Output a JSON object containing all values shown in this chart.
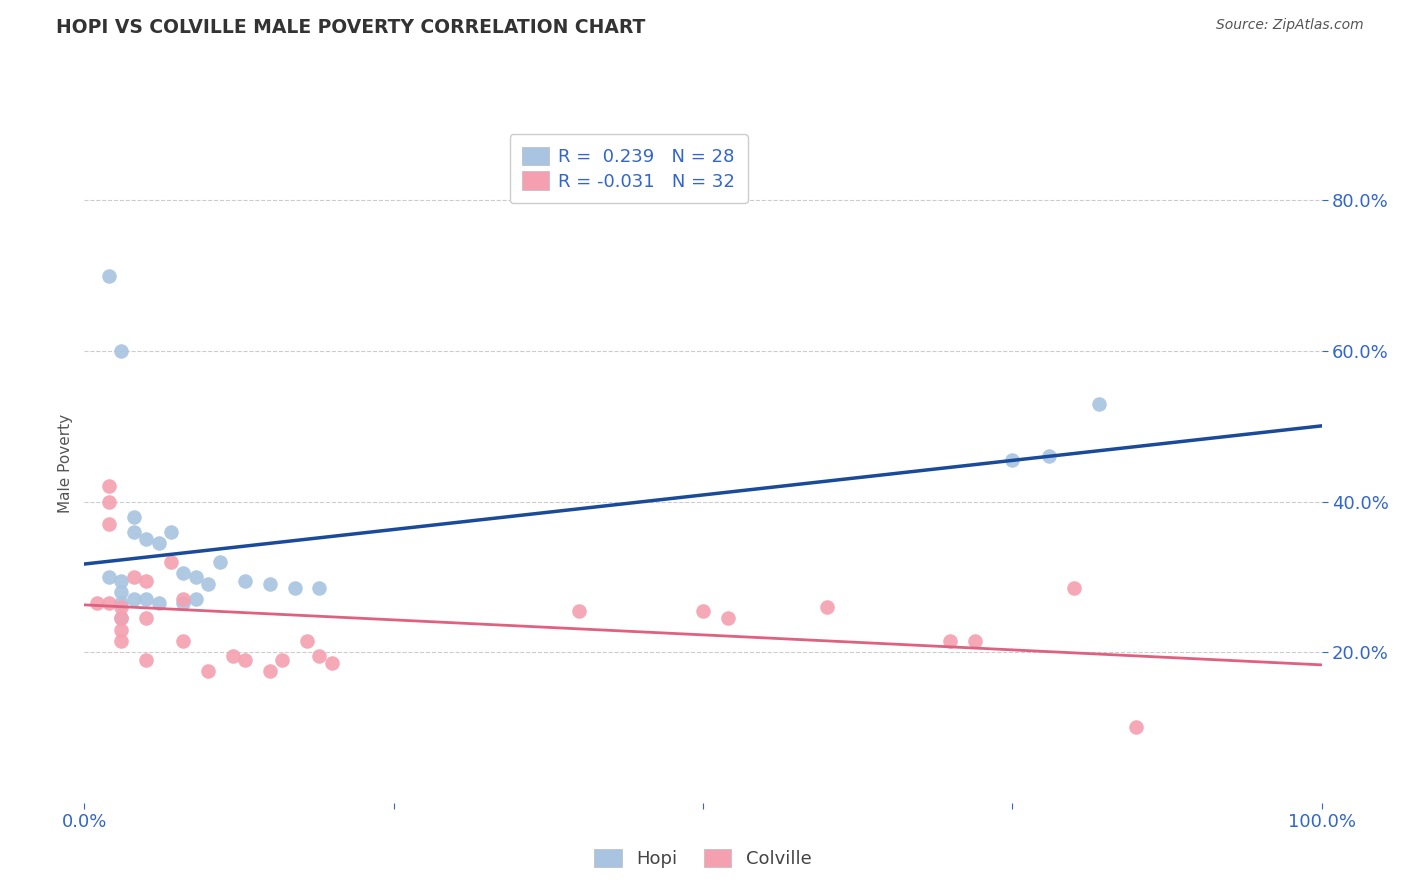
{
  "title": "HOPI VS COLVILLE MALE POVERTY CORRELATION CHART",
  "source": "Source: ZipAtlas.com",
  "ylabel": "Male Poverty",
  "xlim": [
    0.0,
    1.0
  ],
  "ylim": [
    0.0,
    0.9
  ],
  "xtick_vals": [
    0.0,
    0.25,
    0.5,
    0.75,
    1.0
  ],
  "xtick_labels": [
    "0.0%",
    "",
    "",
    "",
    "100.0%"
  ],
  "ytick_vals": [
    0.2,
    0.4,
    0.6,
    0.8
  ],
  "ytick_labels": [
    "20.0%",
    "40.0%",
    "60.0%",
    "80.0%"
  ],
  "hopi_color": "#a8c4e0",
  "colville_color": "#f4a0b0",
  "hopi_line_color": "#1a4a9a",
  "colville_line_color": "#e06080",
  "hopi_R": 0.239,
  "hopi_N": 28,
  "colville_R": -0.031,
  "colville_N": 32,
  "legend_color": "#3366cc",
  "hopi_x": [
    0.02,
    0.03,
    0.04,
    0.04,
    0.05,
    0.06,
    0.07,
    0.08,
    0.09,
    0.1,
    0.11,
    0.13,
    0.15,
    0.17,
    0.19,
    0.02,
    0.03,
    0.03,
    0.03,
    0.03,
    0.04,
    0.05,
    0.06,
    0.08,
    0.09,
    0.75,
    0.78,
    0.82
  ],
  "hopi_y": [
    0.7,
    0.6,
    0.38,
    0.36,
    0.35,
    0.345,
    0.36,
    0.305,
    0.3,
    0.29,
    0.32,
    0.295,
    0.29,
    0.285,
    0.285,
    0.3,
    0.295,
    0.28,
    0.265,
    0.245,
    0.27,
    0.27,
    0.265,
    0.265,
    0.27,
    0.455,
    0.46,
    0.53
  ],
  "colville_x": [
    0.01,
    0.02,
    0.02,
    0.02,
    0.02,
    0.03,
    0.03,
    0.03,
    0.03,
    0.04,
    0.05,
    0.05,
    0.05,
    0.07,
    0.08,
    0.08,
    0.1,
    0.12,
    0.13,
    0.15,
    0.16,
    0.18,
    0.19,
    0.2,
    0.4,
    0.5,
    0.52,
    0.6,
    0.7,
    0.72,
    0.8,
    0.85
  ],
  "colville_y": [
    0.265,
    0.42,
    0.4,
    0.37,
    0.265,
    0.26,
    0.245,
    0.23,
    0.215,
    0.3,
    0.295,
    0.245,
    0.19,
    0.32,
    0.27,
    0.215,
    0.175,
    0.195,
    0.19,
    0.175,
    0.19,
    0.215,
    0.195,
    0.185,
    0.255,
    0.255,
    0.245,
    0.26,
    0.215,
    0.215,
    0.285,
    0.1
  ],
  "background_color": "#ffffff",
  "grid_color": "#cccccc",
  "title_color": "#333333",
  "source_color": "#555555",
  "ylabel_color": "#555555",
  "tick_color": "#3366cc"
}
